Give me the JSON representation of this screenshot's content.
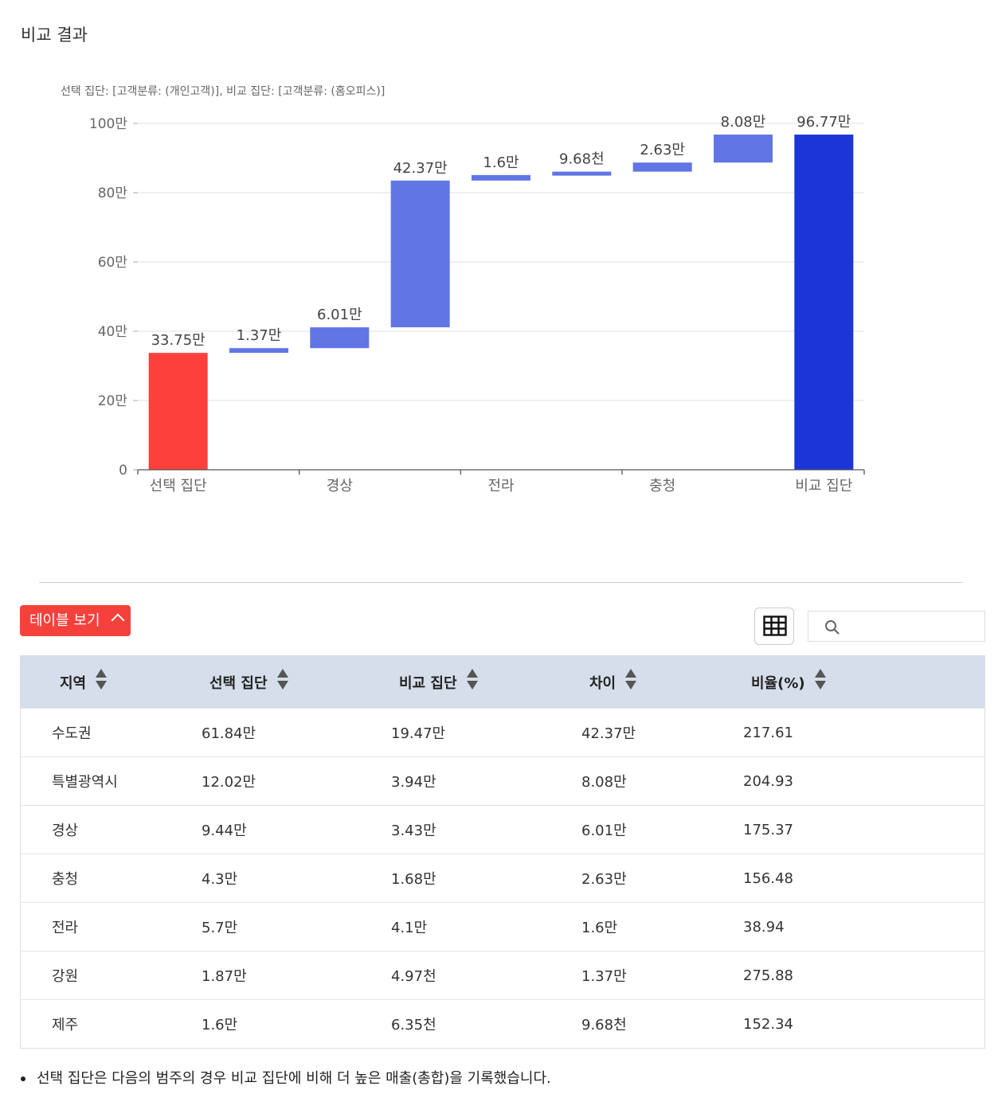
{
  "page": {
    "title": "비교 결과"
  },
  "chart_data": {
    "type": "waterfall",
    "subtitle": "선택 집단: [고객분류: (개인고객)], 비교 집단: [고객분류: (홈오피스)]",
    "ylim": [
      0,
      1000000
    ],
    "yticks": [
      {
        "value": 0,
        "label": "0"
      },
      {
        "value": 200000,
        "label": "20만"
      },
      {
        "value": 400000,
        "label": "40만"
      },
      {
        "value": 600000,
        "label": "60만"
      },
      {
        "value": 800000,
        "label": "80만"
      },
      {
        "value": 1000000,
        "label": "100만"
      }
    ],
    "xtick_labels": [
      "선택 집단",
      "경상",
      "전라",
      "충청",
      "비교 집단"
    ],
    "bars": [
      {
        "kind": "total",
        "start": 0,
        "end": 337500,
        "label": "33.75만"
      },
      {
        "kind": "step",
        "start": 337500,
        "end": 351200,
        "label": "1.37만"
      },
      {
        "kind": "step",
        "start": 351200,
        "end": 411300,
        "label": "6.01만"
      },
      {
        "kind": "step",
        "start": 411300,
        "end": 835000,
        "label": "42.37만"
      },
      {
        "kind": "step",
        "start": 835000,
        "end": 851000,
        "label": "1.6만"
      },
      {
        "kind": "step",
        "start": 851000,
        "end": 860700,
        "label": "9.68천"
      },
      {
        "kind": "step",
        "start": 860700,
        "end": 887000,
        "label": "2.63만"
      },
      {
        "kind": "step",
        "start": 887000,
        "end": 967700,
        "label": "8.08만"
      },
      {
        "kind": "total",
        "start": 0,
        "end": 967700,
        "label": "96.77만"
      }
    ],
    "colors": {
      "start_total": "#fd403b",
      "step": "#6175e5",
      "end_total": "#1c35d9",
      "grid": "#e3e6ec",
      "axis": "#555555"
    }
  },
  "table_toggle": {
    "label": "테이블 보기"
  },
  "search": {
    "placeholder": ""
  },
  "table": {
    "headers": [
      "지역",
      "선택 집단",
      "비교 집단",
      "차이",
      "비율(%)"
    ],
    "rows": [
      [
        "수도권",
        "61.84만",
        "19.47만",
        "42.37만",
        "217.61"
      ],
      [
        "특별광역시",
        "12.02만",
        "3.94만",
        "8.08만",
        "204.93"
      ],
      [
        "경상",
        "9.44만",
        "3.43만",
        "6.01만",
        "175.37"
      ],
      [
        "충청",
        "4.3만",
        "1.68만",
        "2.63만",
        "156.48"
      ],
      [
        "전라",
        "5.7만",
        "4.1만",
        "1.6만",
        "38.94"
      ],
      [
        "강원",
        "1.87만",
        "4.97천",
        "1.37만",
        "275.88"
      ],
      [
        "제주",
        "1.6만",
        "6.35천",
        "9.68천",
        "152.34"
      ]
    ]
  },
  "note": "선택 집단은 다음의 범주의 경우 비교 집단에 비해 더 높은 매출(총합)을 기록했습니다."
}
